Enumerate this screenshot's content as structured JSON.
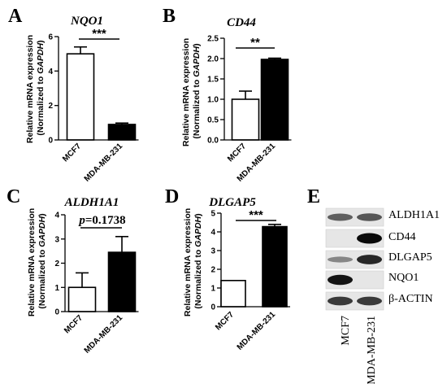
{
  "panels": [
    {
      "letter": "A",
      "title": "NQO1",
      "significance": "***",
      "ylabel_line1": "Relative mRNA expression",
      "ylabel_prefix": "(Normalized to ",
      "ylabel_gene": "GAPDH",
      "ylabel_suffix": ")",
      "yticks": [
        "0",
        "2",
        "4",
        "6"
      ]
    },
    {
      "letter": "B",
      "title": "CD44",
      "significance": "**",
      "ylabel_line1": "Relative mRNA expression",
      "ylabel_prefix": "(Normalized to ",
      "ylabel_gene": "GAPDH",
      "ylabel_suffix": ")",
      "yticks": [
        "0.0",
        "0.5",
        "1.0",
        "1.5",
        "2.0",
        "2.5"
      ]
    },
    {
      "letter": "C",
      "title": "ALDH1A1",
      "significance_p": "p",
      "significance_val": "=0.1738",
      "ylabel_line1": "Relative mRNA expression",
      "ylabel_prefix": "(Normalized to ",
      "ylabel_gene": "GAPDH",
      "ylabel_suffix": ")",
      "yticks": [
        "0",
        "1",
        "2",
        "3",
        "4"
      ]
    },
    {
      "letter": "D",
      "title": "DLGAP5",
      "significance": "***",
      "ylabel_line1": "Relative mRNA expression",
      "ylabel_prefix": "(Normalized to ",
      "ylabel_gene": "GAPDH",
      "ylabel_suffix": ")",
      "yticks": [
        "0",
        "1",
        "2",
        "3",
        "4",
        "5"
      ]
    }
  ],
  "categories": [
    "MCF7",
    "MDA-MB-231"
  ],
  "blot": {
    "letter": "E",
    "rows": [
      "ALDH1A1",
      "CD44",
      "DLGAP5",
      "NQO1",
      "β-ACTIN"
    ],
    "lanes": [
      "MCF7",
      "MDA-MB-231"
    ],
    "intensity": [
      [
        0.55,
        0.6
      ],
      [
        0.0,
        1.0
      ],
      [
        0.35,
        0.85
      ],
      [
        0.95,
        0.0
      ],
      [
        0.75,
        0.75
      ]
    ]
  },
  "colors": {
    "bar_mcf7": "#ffffff",
    "bar_mda": "#000000",
    "line": "#000000"
  },
  "chart_data": [
    {
      "type": "bar",
      "title": "NQO1",
      "categories": [
        "MCF7",
        "MDA-MB-231"
      ],
      "values": [
        5.0,
        0.9
      ],
      "errors": [
        0.4,
        0.08
      ],
      "ylim": [
        0,
        6
      ],
      "ylabel": "Relative mRNA expression (Normalized to GAPDH)",
      "annotation": "***"
    },
    {
      "type": "bar",
      "title": "CD44",
      "categories": [
        "MCF7",
        "MDA-MB-231"
      ],
      "values": [
        1.0,
        1.98
      ],
      "errors": [
        0.2,
        0.03
      ],
      "ylim": [
        0,
        2.5
      ],
      "ylabel": "Relative mRNA expression (Normalized to GAPDH)",
      "annotation": "**"
    },
    {
      "type": "bar",
      "title": "ALDH1A1",
      "categories": [
        "MCF7",
        "MDA-MB-231"
      ],
      "values": [
        1.0,
        2.45
      ],
      "errors": [
        0.6,
        0.65
      ],
      "ylim": [
        0,
        4
      ],
      "ylabel": "Relative mRNA expression (Normalized to GAPDH)",
      "annotation": "p=0.1738"
    },
    {
      "type": "bar",
      "title": "DLGAP5",
      "categories": [
        "MCF7",
        "MDA-MB-231"
      ],
      "values": [
        1.4,
        4.28
      ],
      "errors": [
        0.0,
        0.12
      ],
      "ylim": [
        0,
        5
      ],
      "ylabel": "Relative mRNA expression (Normalized to GAPDH)",
      "annotation": "***"
    }
  ]
}
